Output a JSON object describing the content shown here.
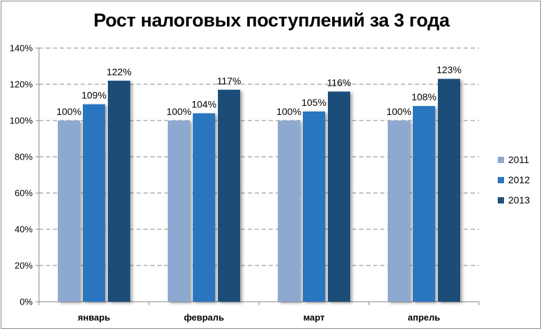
{
  "chart_data": {
    "type": "bar",
    "title": "Рост налоговых поступлений за 3 года",
    "xlabel": "",
    "ylabel": "",
    "categories": [
      "январь",
      "февраль",
      "март",
      "апрель"
    ],
    "series": [
      {
        "name": "2011",
        "values": [
          100,
          100,
          100,
          100
        ],
        "labels": [
          "100%",
          "100%",
          "100%",
          "100%"
        ],
        "color": "#8ea9cf"
      },
      {
        "name": "2012",
        "values": [
          109,
          104,
          105,
          108
        ],
        "labels": [
          "109%",
          "104%",
          "105%",
          "108%"
        ],
        "color": "#2a74c0"
      },
      {
        "name": "2013",
        "values": [
          122,
          117,
          116,
          123
        ],
        "labels": [
          "122%",
          "117%",
          "116%",
          "123%"
        ],
        "color": "#1f4e79"
      }
    ],
    "ylim": [
      0,
      140
    ],
    "yticks": [
      {
        "value": 0,
        "label": "0%"
      },
      {
        "value": 20,
        "label": "20%"
      },
      {
        "value": 40,
        "label": "40%"
      },
      {
        "value": 60,
        "label": "60%"
      },
      {
        "value": 80,
        "label": "80%"
      },
      {
        "value": 100,
        "label": "100%"
      },
      {
        "value": 120,
        "label": "120%"
      },
      {
        "value": 140,
        "label": "140%"
      }
    ],
    "grid": true,
    "grid_style": "dashed",
    "legend_position": "right"
  }
}
